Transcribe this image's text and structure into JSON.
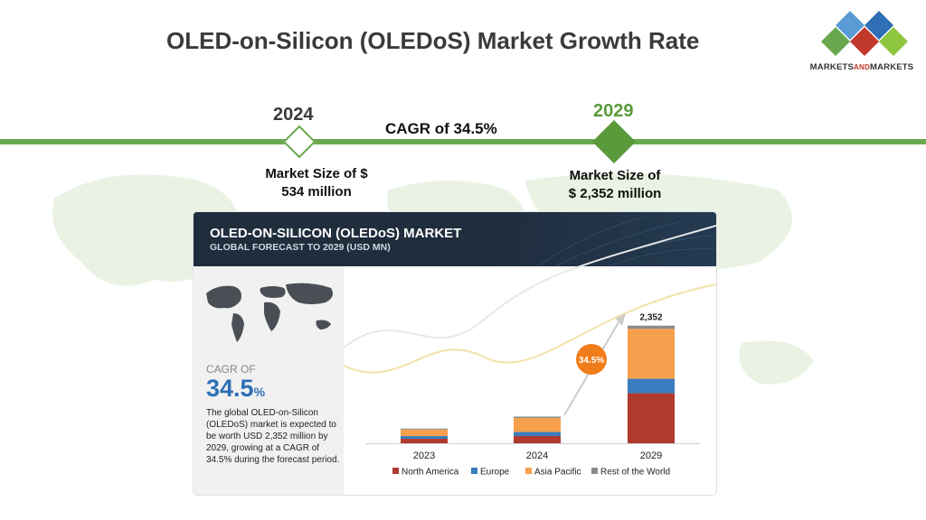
{
  "page": {
    "title": "OLED-on-Silicon (OLEDoS) Market Growth Rate"
  },
  "logo": {
    "text_a": "MARKETS",
    "text_and": "AND",
    "text_b": "MARKETS",
    "colors": [
      "#6aa84f",
      "#2e6fb5",
      "#c0392b",
      "#8dc63f",
      "#5b9bd5"
    ]
  },
  "timeline": {
    "year_start": "2024",
    "year_end": "2029",
    "cagr_text": "CAGR of 34.5%",
    "market_size_start_line1": "Market Size of $",
    "market_size_start_line2": "534 million",
    "market_size_end_line1": "Market Size of",
    "market_size_end_line2": "$ 2,352 million",
    "accent_color": "#6aa84f"
  },
  "infographic": {
    "title": "OLED-ON-SILICON (OLEDoS) MARKET",
    "subtitle": "GLOBAL FORECAST TO 2029 (USD MN)",
    "cagr_label": "CAGR OF",
    "cagr_value": "34.5",
    "cagr_unit": "%",
    "description": "The global OLED-on-Silicon (OLEDoS) market is expected to be worth USD 2,352 million by 2029, growing at a CAGR of 34.5% during the forecast period.",
    "cagr_bubble": "34.5%"
  },
  "chart_data": {
    "type": "bar",
    "stacked": true,
    "categories": [
      "2023",
      "2024",
      "2029"
    ],
    "series": [
      {
        "name": "North America",
        "color": "#b03a2e",
        "values": [
          90,
          145,
          1000
        ]
      },
      {
        "name": "Europe",
        "color": "#3a7dbf",
        "values": [
          55,
          80,
          290
        ]
      },
      {
        "name": "Asia Pacific",
        "color": "#f6a04d",
        "values": [
          130,
          280,
          1000
        ]
      },
      {
        "name": "Rest of the World",
        "color": "#8c8c8c",
        "values": [
          20,
          29,
          62
        ]
      }
    ],
    "data_labels": {
      "2029": "2,352"
    },
    "ylim": [
      0,
      2600
    ],
    "legend_position": "bottom"
  }
}
